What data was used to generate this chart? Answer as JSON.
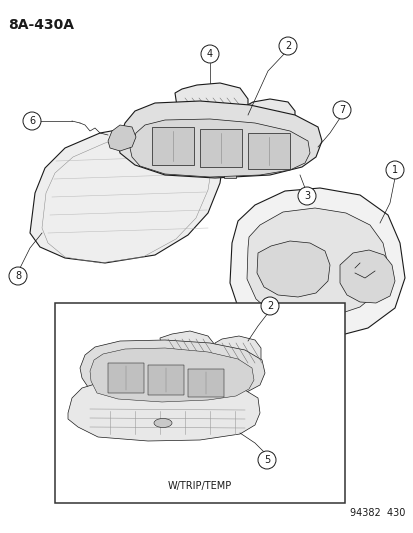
{
  "title": "8A–430A",
  "title_text": "8A-430A",
  "footer_left": "W/TRIP/TEMP",
  "footer_right": "94382  430",
  "bg_color": "#ffffff",
  "line_color": "#1a1a1a",
  "fig_width": 4.14,
  "fig_height": 5.33,
  "dpi": 100,
  "title_fontsize": 10,
  "callout_fontsize": 7,
  "footer_fontsize": 7
}
